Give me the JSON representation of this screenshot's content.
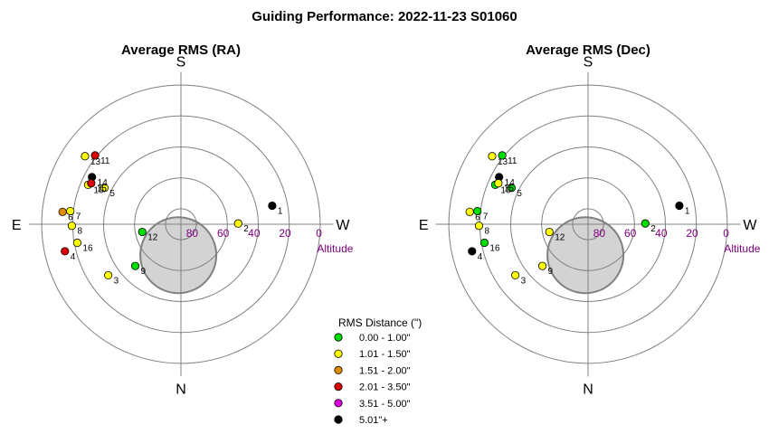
{
  "title": "Guiding Performance: 2022-11-23 S01060",
  "directions": {
    "top": "S",
    "bottom": "N",
    "left": "E",
    "right": "W"
  },
  "altitude_axis_label": "Altitude",
  "legend": {
    "title": "RMS Distance (\")",
    "items": [
      {
        "label": "0.00 - 1.00\"",
        "color": "#00dd00"
      },
      {
        "label": "1.01 - 1.50\"",
        "color": "#ffff00"
      },
      {
        "label": "1.51 - 2.00\"",
        "color": "#e08c00"
      },
      {
        "label": "2.01 - 3.50\"",
        "color": "#dd0000"
      },
      {
        "label": "3.51 - 5.00\"",
        "color": "#dd00dd"
      },
      {
        "label": "5.01\"+",
        "color": "#000000"
      }
    ]
  },
  "chart_data": [
    {
      "type": "scatter",
      "projection": "polar",
      "title": "Average RMS (RA)",
      "radial_axis": {
        "label": "Altitude",
        "ticks": [
          80,
          60,
          40,
          20,
          0
        ],
        "range": [
          90,
          0
        ]
      },
      "obstruction": {
        "x": -1.7,
        "y": -20
      },
      "points": [
        {
          "label": "1",
          "x": 59,
          "y": 12,
          "color": "#000000"
        },
        {
          "label": "2",
          "x": 37,
          "y": 0.5,
          "color": "#ffff00"
        },
        {
          "label": "3",
          "x": -47,
          "y": -33,
          "color": "#ffff00"
        },
        {
          "label": "4",
          "x": -75,
          "y": -17.5,
          "color": "#dd0000"
        },
        {
          "label": "5",
          "x": -49.5,
          "y": 23.5,
          "color": "#ffff00"
        },
        {
          "label": "6",
          "x": -76.5,
          "y": 8,
          "color": "#e08c00"
        },
        {
          "label": "7",
          "x": -71.5,
          "y": 8.5,
          "color": "#ffff00"
        },
        {
          "label": "8",
          "x": -70.5,
          "y": -1,
          "color": "#ffff00"
        },
        {
          "label": "9",
          "x": -29.5,
          "y": -27,
          "color": "#00dd00"
        },
        {
          "label": "10",
          "x": -60,
          "y": 25.5,
          "color": "#ffff00"
        },
        {
          "label": "11",
          "x": -55.5,
          "y": 44.5,
          "color": "#dd0000"
        },
        {
          "label": "12",
          "x": -25,
          "y": -5,
          "color": "#00dd00"
        },
        {
          "label": "13",
          "x": -62,
          "y": 44,
          "color": "#ffff00"
        },
        {
          "label": "14",
          "x": -57.5,
          "y": 30.5,
          "color": "#000000"
        },
        {
          "label": "15",
          "x": -58,
          "y": 26.5,
          "color": "#dd0000"
        },
        {
          "label": "16",
          "x": -67,
          "y": -12,
          "color": "#ffff00"
        }
      ]
    },
    {
      "type": "scatter",
      "projection": "polar",
      "title": "Average RMS (Dec)",
      "radial_axis": {
        "label": "Altitude",
        "ticks": [
          80,
          60,
          40,
          20,
          0
        ],
        "range": [
          90,
          0
        ]
      },
      "obstruction": {
        "x": -1.7,
        "y": -20
      },
      "points": [
        {
          "label": "1",
          "x": 59,
          "y": 12,
          "color": "#000000"
        },
        {
          "label": "2",
          "x": 37,
          "y": 0.5,
          "color": "#00dd00"
        },
        {
          "label": "3",
          "x": -47,
          "y": -33,
          "color": "#ffff00"
        },
        {
          "label": "4",
          "x": -75,
          "y": -17.5,
          "color": "#000000"
        },
        {
          "label": "5",
          "x": -49.5,
          "y": 23.5,
          "color": "#00dd00"
        },
        {
          "label": "6",
          "x": -76.5,
          "y": 8,
          "color": "#ffff00"
        },
        {
          "label": "7",
          "x": -71.5,
          "y": 8.5,
          "color": "#00dd00"
        },
        {
          "label": "8",
          "x": -70.5,
          "y": -1,
          "color": "#ffff00"
        },
        {
          "label": "9",
          "x": -29.5,
          "y": -27,
          "color": "#ffff00"
        },
        {
          "label": "10",
          "x": -60,
          "y": 25.5,
          "color": "#00dd00"
        },
        {
          "label": "11",
          "x": -55.5,
          "y": 44.5,
          "color": "#00dd00"
        },
        {
          "label": "12",
          "x": -25,
          "y": -5,
          "color": "#ffff00"
        },
        {
          "label": "13",
          "x": -62,
          "y": 44,
          "color": "#ffff00"
        },
        {
          "label": "14",
          "x": -57.5,
          "y": 30.5,
          "color": "#000000"
        },
        {
          "label": "15",
          "x": -58,
          "y": 26.5,
          "color": "#ffff00"
        },
        {
          "label": "16",
          "x": -67,
          "y": -12,
          "color": "#00dd00"
        }
      ]
    }
  ]
}
